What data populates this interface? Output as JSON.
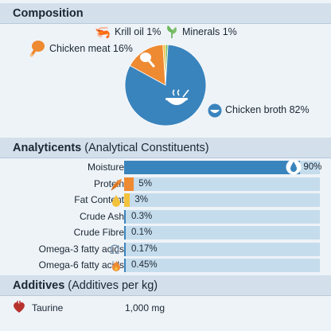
{
  "sections": {
    "composition": {
      "title": "Composition"
    },
    "analyticents": {
      "title": "Analyticents",
      "subtitle": "(Analytical Constituents)"
    },
    "additives": {
      "title": "Additives",
      "subtitle": "(Additives per kg)"
    }
  },
  "chart_data": [
    {
      "type": "pie",
      "slices": [
        {
          "name": "Chicken broth",
          "label": "Chicken broth 82%",
          "value": 82,
          "color": "#3a84bd",
          "icon": "bowl-icon"
        },
        {
          "name": "Chicken meat",
          "label": "Chicken meat 16%",
          "value": 16,
          "color": "#ee8a32",
          "icon": "drumstick-icon"
        },
        {
          "name": "Krill oil",
          "label": "Krill oil 1%",
          "value": 1,
          "color": "#f3c23c",
          "icon": "shrimp-icon"
        },
        {
          "name": "Minerals",
          "label": "Minerals 1%",
          "value": 1,
          "color": "#7cbf6a",
          "icon": "leaf-icon"
        }
      ]
    },
    {
      "type": "bar",
      "orientation": "horizontal",
      "categories": [
        "Moisture",
        "Protein",
        "Fat Content",
        "Crude Ash",
        "Crude Fibre",
        "Omega-3 fatty acids",
        "Omega-6 fatty acids"
      ],
      "values": [
        90,
        5,
        3,
        0.3,
        0.1,
        0.17,
        0.45
      ],
      "value_labels": [
        "90%",
        "5%",
        "3%",
        "0.3%",
        "0.1%",
        "0.17%",
        "0.45%"
      ],
      "colors": [
        "#3a84bd",
        "#ee8a32",
        "#f3c23c",
        "#3a84bd",
        "#3a84bd",
        "#3a84bd",
        "#3a84bd"
      ],
      "icons": [
        "water-drop-icon",
        "feather-icon",
        "oil-drop-icon",
        "",
        "",
        "omega-icon",
        "flame-icon"
      ],
      "xlim": [
        0,
        100
      ]
    }
  ],
  "additives": [
    {
      "name": "Taurine",
      "value": "1,000 mg",
      "icon": "heart-icon"
    }
  ]
}
